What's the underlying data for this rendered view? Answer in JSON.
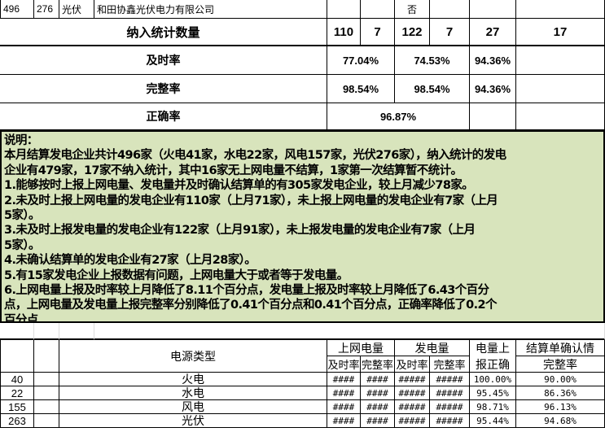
{
  "top_row": {
    "c1": "496",
    "c2": "276",
    "c3": "光伏",
    "c4": "和田协鑫光伏电力有限公司",
    "c5": "否"
  },
  "summary": {
    "count_label": "纳入统计数量",
    "counts": [
      "110",
      "7",
      "122",
      "7",
      "27",
      "17"
    ],
    "timely_label": "及时率",
    "timely": [
      "77.04%",
      "74.53%",
      "94.36%"
    ],
    "complete_label": "完整率",
    "complete": [
      "98.54%",
      "98.54%",
      "94.36%"
    ],
    "correct_label": "正确率",
    "correct": "96.87%"
  },
  "notes": {
    "lines": [
      "说明：",
      "本月结算发电企业共计496家（火电41家，水电22家，风电157家，光伏276家），纳入统计的发电",
      "企业有479家，17家不纳入统计，其中16家无上网电量不结算，1家第一次结算暂不统计。",
      "1.能够按时上报上网电量、发电量并及时确认结算单的有305家发电企业，较上月减少78家。",
      "2.未及时上报上网电量的发电企业有110家（上月71家），未上报上网电量的发电企业有7家（上月",
      "5家）。",
      "3.未及时上报发电量的发电企业有122家（上月91家），未上报发电量的发电企业有7家（上月",
      "5家）。",
      "4.未确认结算单的发电企业有27家（上月28家）。",
      "5.有15家发电企业上报数据有问题，上网电量大于或者等于发电量。",
      "6.上网电量上报及时率较上月降低了8.11个百分点，发电量上报及时率较上月降低了6.43个百分",
      "点，上网电量及发电量上报完整率分别降低了0.41个百分点和0.41个百分点，正确率降低了0.2个",
      "百分点"
    ]
  },
  "table2": {
    "header": {
      "type": "电源类型",
      "online": "上网电量",
      "gen": "发电量",
      "correct_top": "电量上",
      "correct_bottom": "报正确",
      "settle_top": "结算单确认情",
      "settle_bottom": "完整率",
      "timely": "及时率",
      "complete": "完整率"
    },
    "rows": [
      {
        "count": "40",
        "type": "火电",
        "v": [
          "####",
          "####",
          "#####",
          "#####"
        ],
        "correct": "100.00%",
        "settle": "90.00%"
      },
      {
        "count": "22",
        "type": "水电",
        "v": [
          "####",
          "####",
          "#####",
          "#####"
        ],
        "correct": "95.45%",
        "settle": "86.36%"
      },
      {
        "count": "155",
        "type": "风电",
        "v": [
          "####",
          "####",
          "#####",
          "#####"
        ],
        "correct": "98.71%",
        "settle": "96.13%"
      },
      {
        "count": "263",
        "type": "光伏",
        "v": [
          "####",
          "####",
          "#####",
          "#####"
        ],
        "correct": "95.44%",
        "settle": "94.68%"
      }
    ]
  }
}
